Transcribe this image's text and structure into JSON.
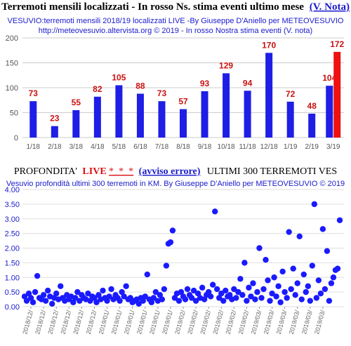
{
  "chart_data": [
    {
      "type": "bar",
      "title": "Terremoti mensili localizzati - In rosso Ns. stima eventi ultimo mese",
      "title_link": "(V. Nota)",
      "subtitle": [
        "VESUVIO:terremoti mensili 2018/19 localizzati LIVE -By Giuseppe D'Aniello  per METEOVESUVIO",
        "http://meteovesuvio.altervista.org © 2019 - In rosso Nostra stima eventi (V. nota)"
      ],
      "categories": [
        "1/18",
        "2/18",
        "3/18",
        "4/18",
        "5/18",
        "6/18",
        "7/18",
        "8/18",
        "9/18",
        "10/18",
        "11/18",
        "12/18",
        "1/19",
        "2/19",
        "3/19"
      ],
      "series": [
        {
          "color": "#1e1ee6",
          "values": [
            73,
            23,
            55,
            82,
            105,
            88,
            73,
            57,
            93,
            129,
            94,
            170,
            72,
            48,
            104
          ]
        },
        {
          "color": "#ee1111",
          "values": [
            null,
            null,
            null,
            null,
            null,
            null,
            null,
            null,
            null,
            null,
            null,
            null,
            null,
            null,
            172
          ]
        }
      ],
      "value_label_color": "#cc1111",
      "ylim": [
        0,
        200
      ],
      "yticks": [
        0,
        50,
        100,
        150,
        200
      ],
      "grid": true
    },
    {
      "type": "scatter",
      "title_parts": [
        "PROFONDITA'",
        "LIVE",
        "*_*_*",
        "(avviso errore)",
        "ULTIMI 300 TERREMOTI VES"
      ],
      "subtitle": "Vesuvio profondità ultimi 300 terremoti in KM. By Giuseppe D'Aniello per METEOVESUVIO © 2019",
      "color": "#1a1aff",
      "x": [
        0,
        1,
        2,
        3,
        4,
        5,
        6,
        7,
        8,
        9,
        10,
        11,
        12,
        13,
        14,
        15,
        16,
        17,
        18,
        19,
        20,
        21,
        22,
        23,
        24,
        25,
        26,
        27,
        28,
        29,
        30,
        31,
        32,
        33,
        34,
        35,
        36,
        37,
        38,
        39,
        40,
        41,
        42,
        43,
        44,
        45,
        46,
        47,
        48,
        49,
        50,
        51,
        52,
        53,
        54,
        55,
        56,
        57,
        58,
        59,
        60,
        61,
        62,
        63,
        64,
        65,
        66,
        67,
        68,
        69,
        70,
        71,
        72,
        73,
        74,
        75,
        76,
        77,
        78,
        79,
        80,
        81,
        82,
        83,
        84,
        85,
        86,
        87,
        88,
        89,
        90,
        91,
        92,
        93,
        94,
        95,
        96,
        97,
        98,
        99,
        100,
        101,
        102,
        103,
        104,
        105,
        106,
        107,
        108,
        109,
        110,
        111,
        112,
        113,
        114,
        115,
        116,
        117,
        118,
        119,
        120,
        121,
        122,
        123,
        124,
        125,
        126,
        127,
        128,
        129,
        130,
        131,
        132,
        133,
        134,
        135,
        136,
        137,
        138,
        139,
        140,
        141,
        142,
        143,
        144,
        145,
        146,
        147,
        148,
        149
      ],
      "values": [
        0.35,
        0.2,
        0.45,
        0.3,
        0.15,
        0.5,
        1.05,
        0.3,
        0.25,
        0.4,
        0.2,
        0.55,
        0.35,
        0.1,
        0.3,
        0.45,
        0.25,
        0.7,
        0.3,
        0.2,
        0.4,
        0.25,
        0.35,
        0.15,
        0.3,
        0.5,
        0.2,
        0.4,
        0.3,
        0.25,
        0.45,
        0.2,
        0.35,
        0.3,
        0.15,
        0.4,
        0.25,
        0.55,
        0.3,
        0.2,
        0.35,
        0.6,
        0.25,
        0.4,
        0.3,
        0.2,
        0.5,
        0.35,
        0.7,
        0.25,
        0.3,
        0.15,
        0.2,
        0.25,
        0.1,
        0.3,
        0.2,
        0.35,
        1.1,
        0.25,
        0.15,
        0.3,
        0.5,
        0.2,
        0.4,
        0.25,
        0.6,
        1.4,
        2.15,
        2.2,
        2.6,
        0.3,
        0.45,
        0.2,
        0.5,
        0.35,
        0.25,
        0.6,
        0.4,
        0.3,
        0.55,
        0.2,
        0.45,
        0.3,
        0.65,
        0.25,
        0.4,
        0.5,
        0.35,
        0.75,
        3.25,
        0.6,
        0.3,
        0.45,
        0.2,
        0.55,
        0.35,
        0.4,
        0.25,
        0.6,
        0.3,
        0.5,
        0.95,
        0.4,
        1.5,
        0.2,
        0.65,
        0.35,
        0.8,
        0.25,
        0.5,
        2.0,
        0.3,
        0.6,
        1.6,
        0.9,
        0.2,
        0.45,
        1.0,
        0.35,
        0.7,
        0.15,
        1.2,
        0.5,
        0.3,
        2.55,
        0.6,
        1.3,
        0.4,
        0.8,
        2.4,
        0.25,
        1.1,
        0.5,
        0.7,
        0.2,
        1.4,
        3.5,
        0.3,
        0.9,
        0.45,
        2.65,
        0.6,
        1.9,
        0.2,
        0.8,
        1.0,
        1.25,
        1.3,
        2.95
      ],
      "xlim": [
        -1,
        151
      ],
      "xticks": [
        {
          "value": 3,
          "label": "2018/12/"
        },
        {
          "value": 9,
          "label": "2018/12/"
        },
        {
          "value": 15,
          "label": "2018/12/"
        },
        {
          "value": 21,
          "label": "2018/12/"
        },
        {
          "value": 27,
          "label": "2018/12/"
        },
        {
          "value": 33,
          "label": "2018/12/"
        },
        {
          "value": 39,
          "label": "2019/01/"
        },
        {
          "value": 45,
          "label": "2019/01/"
        },
        {
          "value": 51,
          "label": "2019/01/"
        },
        {
          "value": 57,
          "label": "2019/01/"
        },
        {
          "value": 63,
          "label": "2019/01/"
        },
        {
          "value": 69,
          "label": "2019/01/"
        },
        {
          "value": 75,
          "label": "2019/02/"
        },
        {
          "value": 81,
          "label": "2019/02/"
        },
        {
          "value": 87,
          "label": "2019/02/"
        },
        {
          "value": 93,
          "label": "2019/02/"
        },
        {
          "value": 99,
          "label": "2019/02/"
        },
        {
          "value": 105,
          "label": "2019/02/"
        },
        {
          "value": 111,
          "label": "2019/03/"
        },
        {
          "value": 117,
          "label": "2019/03/"
        },
        {
          "value": 123,
          "label": "2019/03/"
        },
        {
          "value": 129,
          "label": "2019/03/"
        },
        {
          "value": 135,
          "label": "2019/03/"
        },
        {
          "value": 141,
          "label": "2019/03/"
        }
      ],
      "ylim": [
        0,
        4
      ],
      "yticks": [
        {
          "value": 0,
          "label": "0.00"
        },
        {
          "value": 0.5,
          "label": "0.50"
        },
        {
          "value": 1,
          "label": "1.00"
        },
        {
          "value": 1.5,
          "label": "1.50"
        },
        {
          "value": 2,
          "label": "2.00"
        },
        {
          "value": 2.5,
          "label": "2.50"
        },
        {
          "value": 3,
          "label": "3.00"
        },
        {
          "value": 3.5,
          "label": "3.50"
        },
        {
          "value": 4,
          "label": "4.00"
        }
      ],
      "grid": true
    }
  ]
}
